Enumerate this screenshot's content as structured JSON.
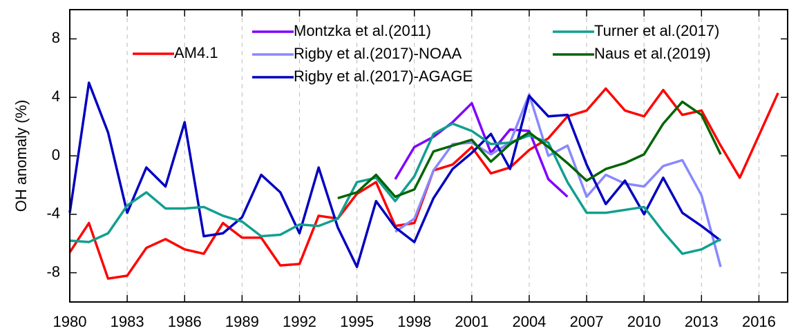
{
  "chart_data": {
    "type": "line",
    "y_label": "OH anomaly (%)",
    "x": [
      1980,
      1981,
      1982,
      1983,
      1984,
      1985,
      1986,
      1987,
      1988,
      1989,
      1990,
      1991,
      1992,
      1993,
      1994,
      1995,
      1996,
      1997,
      1998,
      1999,
      2000,
      2001,
      2002,
      2003,
      2004,
      2005,
      2006,
      2007,
      2008,
      2009,
      2010,
      2011,
      2012,
      2013,
      2014,
      2015,
      2016,
      2017
    ],
    "xlim": [
      1980,
      2017.5
    ],
    "xticks": [
      1980,
      1983,
      1986,
      1989,
      1992,
      1995,
      1998,
      2001,
      2004,
      2007,
      2010,
      2013,
      2016
    ],
    "ylim": [
      -10,
      10
    ],
    "yticks": [
      -8,
      -4,
      0,
      4,
      8
    ],
    "grid": true,
    "series": [
      {
        "name": "AM4.1",
        "color": "#ff0000",
        "values": [
          -6.6,
          -4.6,
          -8.4,
          -8.2,
          -6.3,
          -5.7,
          -6.4,
          -6.7,
          -4.6,
          -5.6,
          -5.6,
          -7.5,
          -7.4,
          -4.1,
          -4.3,
          -2.6,
          -1.8,
          -4.8,
          -4.6,
          -1.0,
          -0.6,
          0.6,
          -1.2,
          -0.8,
          0.4,
          1.2,
          2.7,
          3.1,
          4.6,
          3.1,
          2.7,
          4.5,
          2.8,
          3.1,
          0.7,
          -1.5,
          1.4,
          4.3
        ]
      },
      {
        "name": "Montzka et al.(2011)",
        "color": "#7f00ff",
        "values": [
          null,
          null,
          null,
          null,
          null,
          null,
          null,
          null,
          null,
          null,
          null,
          null,
          null,
          null,
          null,
          null,
          null,
          -1.6,
          0.6,
          1.3,
          2.3,
          3.6,
          0.2,
          1.8,
          1.7,
          -1.6,
          -2.8,
          null,
          null,
          null,
          null,
          null,
          null,
          null,
          null,
          null,
          null,
          null
        ]
      },
      {
        "name": "Rigby et al.(2017)-NOAA",
        "color": "#8888ff",
        "values": [
          null,
          null,
          null,
          null,
          null,
          null,
          null,
          null,
          null,
          null,
          null,
          null,
          null,
          null,
          null,
          null,
          null,
          -5.2,
          -4.3,
          -1.0,
          0.8,
          0.9,
          0.1,
          0.9,
          4.2,
          0.0,
          0.7,
          -2.8,
          -1.3,
          -1.9,
          -2.1,
          -0.7,
          -0.3,
          -2.7,
          -7.6,
          null,
          null,
          null
        ]
      },
      {
        "name": "Rigby et al.(2017)-AGAGE",
        "color": "#0000c0",
        "values": [
          -3.9,
          5.0,
          1.6,
          -3.9,
          -0.8,
          -2.1,
          2.3,
          -5.5,
          -5.3,
          -4.2,
          -1.3,
          -2.5,
          -5.3,
          -0.8,
          -4.9,
          -7.6,
          -3.1,
          -4.9,
          -5.9,
          -2.9,
          -0.9,
          0.2,
          1.5,
          -0.9,
          4.1,
          2.7,
          2.8,
          -0.6,
          -3.3,
          -1.7,
          -4.0,
          -1.5,
          -3.9,
          -4.8,
          -5.8,
          null,
          null,
          null
        ]
      },
      {
        "name": "Turner et al.(2017)",
        "color": "#119f8f",
        "values": [
          -5.8,
          -5.9,
          -5.3,
          -3.4,
          -2.5,
          -3.6,
          -3.6,
          -3.5,
          -4.1,
          -4.5,
          -5.5,
          -5.4,
          -4.7,
          -4.8,
          -4.3,
          -1.8,
          -1.5,
          -3.1,
          -1.4,
          1.5,
          2.2,
          1.7,
          0.8,
          0.9,
          1.4,
          0.9,
          -1.8,
          -3.9,
          -3.9,
          -3.7,
          -3.5,
          -5.2,
          -6.7,
          -6.4,
          -5.7,
          null,
          null,
          null
        ]
      },
      {
        "name": "Naus et al.(2019)",
        "color": "#006400",
        "values": [
          null,
          null,
          null,
          null,
          null,
          null,
          null,
          null,
          null,
          null,
          null,
          null,
          null,
          null,
          -2.9,
          -2.5,
          -1.3,
          -2.8,
          -2.3,
          0.3,
          0.7,
          1.1,
          -0.4,
          0.8,
          1.6,
          0.6,
          -0.5,
          -1.7,
          -0.9,
          -0.5,
          0.1,
          2.2,
          3.7,
          2.8,
          0.1,
          null,
          null,
          null
        ]
      }
    ]
  }
}
